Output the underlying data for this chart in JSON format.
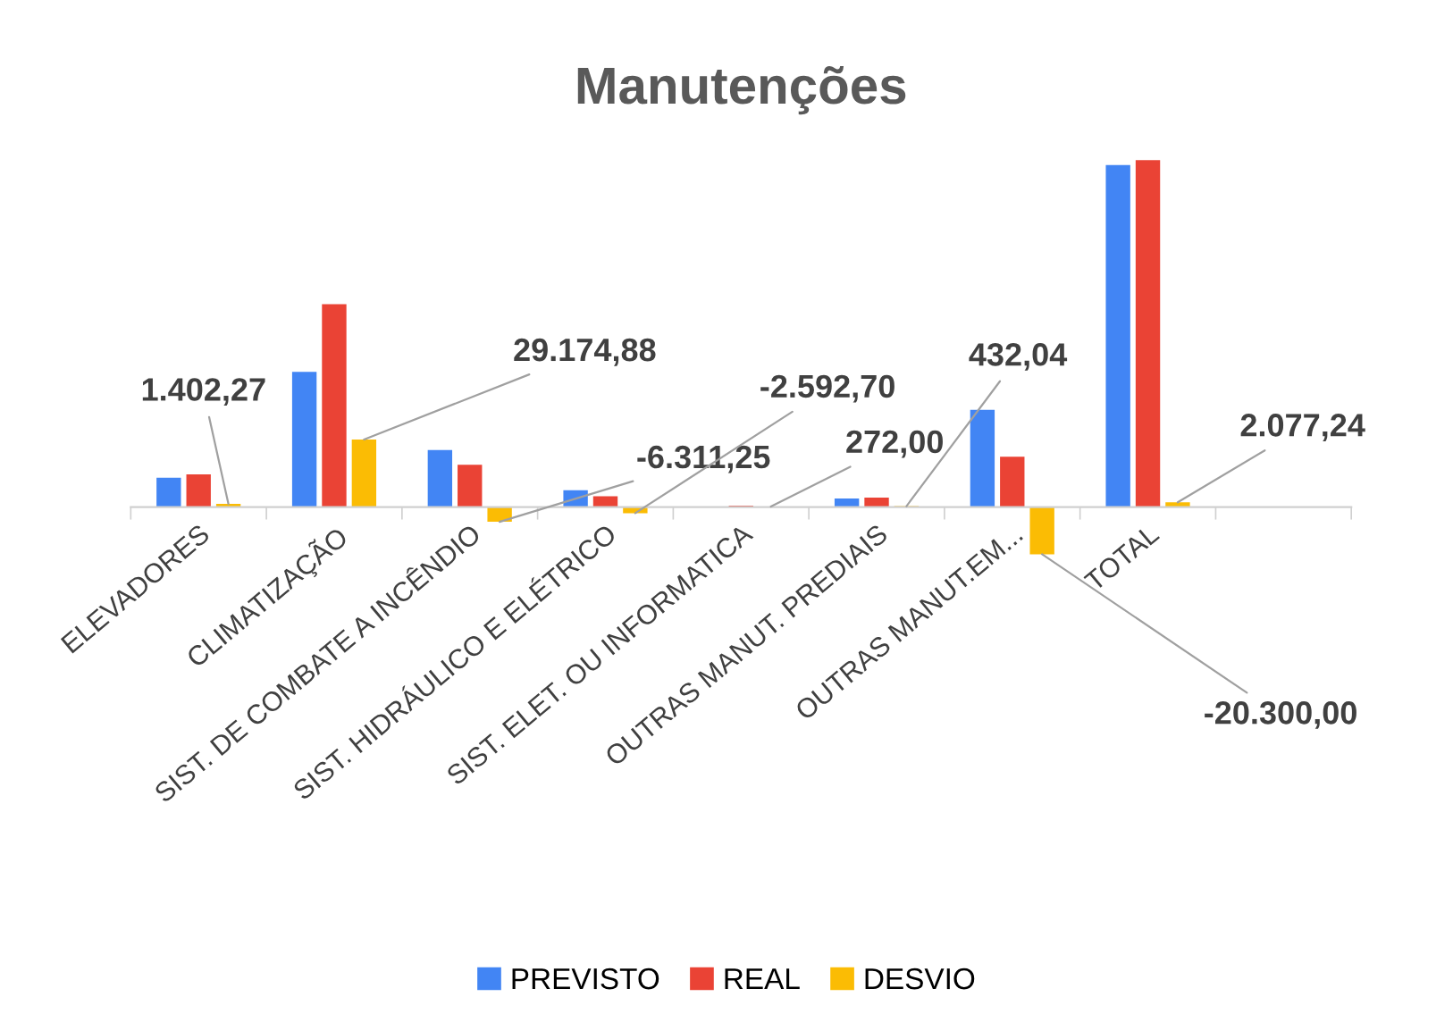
{
  "chart_data": {
    "type": "bar",
    "title": "Manutenções",
    "categories": [
      "ELEVADORES",
      "CLIMATIZAÇÃO",
      "SIST. DE COMBATE A INCÊNDIO",
      "SIST. HIDRÁULICO E ELÉTRICO",
      "SIST. ELET. OU INFORMATICA",
      "OUTRAS MANUT. PREDIAIS",
      "OUTRAS MANUT.EM...",
      "TOTAL"
    ],
    "series": [
      {
        "name": "PREVISTO",
        "color": "#4285f4",
        "values": [
          12700,
          58300,
          24600,
          7300,
          null,
          3700,
          42000,
          147500
        ]
      },
      {
        "name": "REAL",
        "color": "#ea4335",
        "values": [
          14100,
          87475,
          18289,
          4707,
          672,
          4132,
          21700,
          149577
        ]
      },
      {
        "name": "DESVIO",
        "color": "#fbbc04",
        "values": [
          1402.27,
          29174.88,
          -6311.25,
          -2592.7,
          272.0,
          432.04,
          -20300.0,
          2077.24
        ],
        "value_labels": [
          "1.402,27",
          "29.174,88",
          "-6.311,25",
          "-2.592,70",
          "272,00",
          "432,04",
          "-20.300,00",
          "2.077,24"
        ]
      }
    ],
    "legend": "bottom",
    "grid": false
  }
}
